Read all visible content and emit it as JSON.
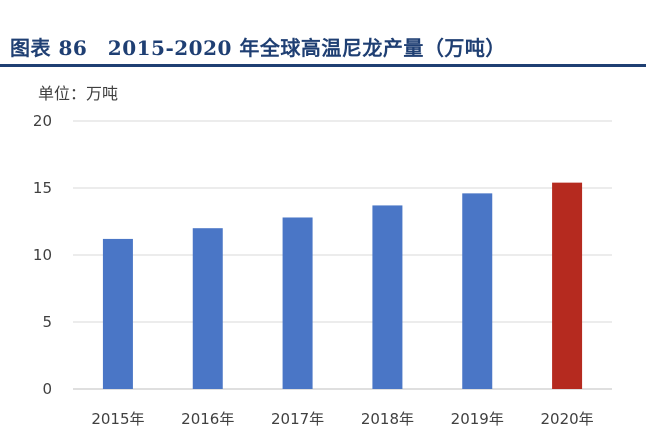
{
  "header": {
    "title": "图表 86　2015-2020 年全球高温尼龙产量（万吨）"
  },
  "chart_data": {
    "type": "bar",
    "unit_label": "单位：万吨",
    "categories": [
      "2015年",
      "2016年",
      "2017年",
      "2018年",
      "2019年",
      "2020年"
    ],
    "values": [
      11.2,
      12.0,
      12.8,
      13.7,
      14.6,
      15.4
    ],
    "ylim": [
      0,
      20
    ],
    "yticks": [
      0,
      5,
      10,
      15,
      20
    ],
    "grid": true,
    "legend": "none",
    "colors": {
      "bar": "#4a76c6",
      "highlight_bar": "#b52a1f",
      "grid": "#d9d9d9",
      "axis": "#bfbfbf"
    },
    "highlight_index": 5
  }
}
